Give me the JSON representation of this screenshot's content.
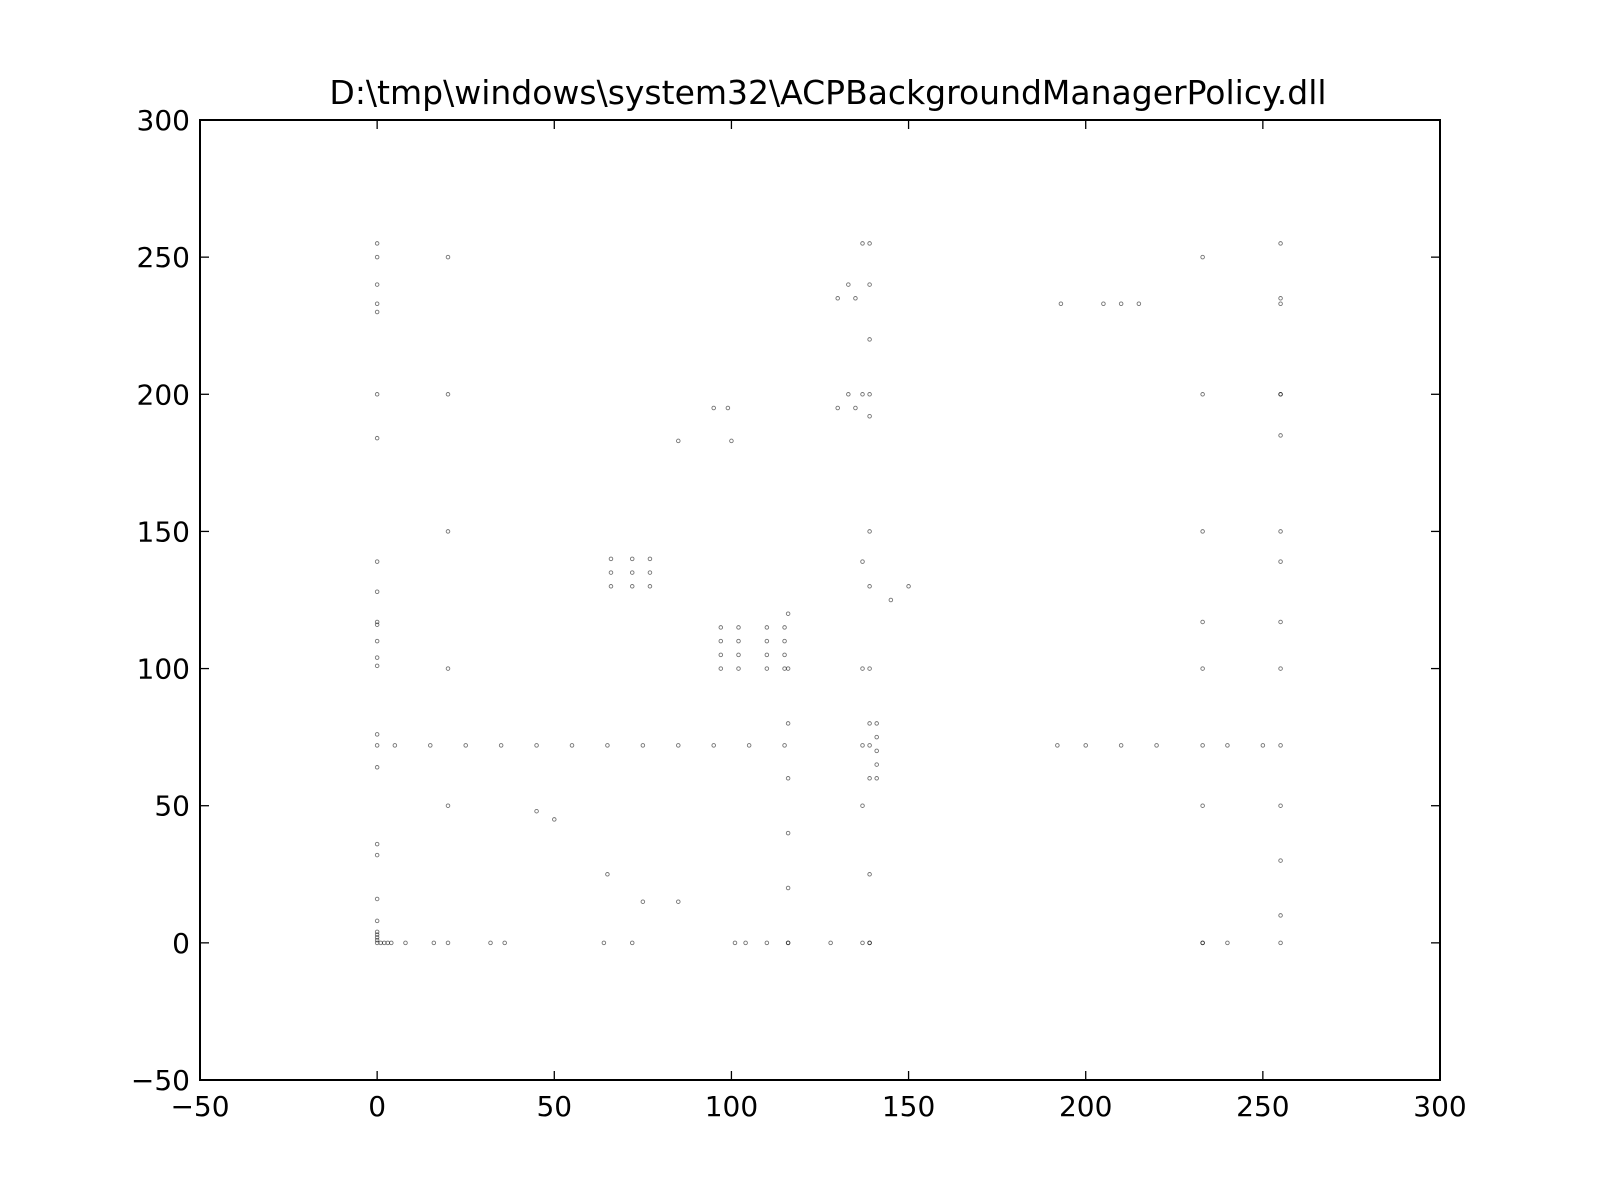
{
  "chart_data": {
    "type": "scatter",
    "title": "D:\\tmp\\windows\\system32\\ACPBackgroundManagerPolicy.dll",
    "xlabel": "",
    "ylabel": "",
    "xlim": [
      -50,
      300
    ],
    "ylim": [
      -50,
      300
    ],
    "x_ticks": [
      -50,
      0,
      50,
      100,
      150,
      200,
      250,
      300
    ],
    "y_ticks": [
      -50,
      0,
      50,
      100,
      150,
      200,
      250,
      300
    ],
    "x_tick_labels": [
      "−50",
      "0",
      "50",
      "100",
      "150",
      "200",
      "250",
      "300"
    ],
    "y_tick_labels": [
      "−50",
      "0",
      "50",
      "100",
      "150",
      "200",
      "250",
      "300"
    ],
    "grid": false,
    "legend": "none",
    "marker_color": "#000000",
    "description": "Byte-pair scatter: each point is (byte[i], byte[i+1]) of the file; values span 0-255 on both axes",
    "series": [
      {
        "values": [
          [
            0,
            0
          ],
          [
            0,
            255
          ],
          [
            0,
            72
          ],
          [
            0,
            117
          ],
          [
            0,
            128
          ],
          [
            0,
            139
          ],
          [
            0,
            200
          ],
          [
            0,
            230
          ],
          [
            0,
            250
          ],
          [
            255,
            0
          ],
          [
            255,
            255
          ],
          [
            255,
            72
          ],
          [
            255,
            117
          ],
          [
            255,
            139
          ],
          [
            255,
            200
          ],
          [
            255,
            233
          ],
          [
            1,
            0
          ],
          [
            2,
            0
          ],
          [
            3,
            0
          ],
          [
            4,
            0
          ],
          [
            8,
            0
          ],
          [
            16,
            0
          ],
          [
            32,
            0
          ],
          [
            36,
            0
          ],
          [
            64,
            0
          ],
          [
            72,
            0
          ],
          [
            101,
            0
          ],
          [
            104,
            0
          ],
          [
            110,
            0
          ],
          [
            116,
            0
          ],
          [
            128,
            0
          ],
          [
            139,
            0
          ],
          [
            233,
            0
          ],
          [
            240,
            0
          ],
          [
            0,
            1
          ],
          [
            0,
            2
          ],
          [
            0,
            3
          ],
          [
            0,
            4
          ],
          [
            0,
            8
          ],
          [
            0,
            16
          ],
          [
            0,
            32
          ],
          [
            0,
            36
          ],
          [
            0,
            64
          ],
          [
            0,
            76
          ],
          [
            0,
            101
          ],
          [
            0,
            104
          ],
          [
            0,
            110
          ],
          [
            0,
            116
          ],
          [
            0,
            184
          ],
          [
            0,
            233
          ],
          [
            0,
            240
          ],
          [
            20,
            0
          ],
          [
            20,
            50
          ],
          [
            20,
            100
          ],
          [
            20,
            150
          ],
          [
            20,
            200
          ],
          [
            20,
            250
          ],
          [
            116,
            0
          ],
          [
            116,
            20
          ],
          [
            116,
            40
          ],
          [
            116,
            60
          ],
          [
            116,
            80
          ],
          [
            116,
            100
          ],
          [
            116,
            120
          ],
          [
            137,
            0
          ],
          [
            137,
            50
          ],
          [
            137,
            72
          ],
          [
            137,
            100
          ],
          [
            137,
            139
          ],
          [
            137,
            200
          ],
          [
            137,
            255
          ],
          [
            139,
            0
          ],
          [
            139,
            25
          ],
          [
            139,
            60
          ],
          [
            139,
            72
          ],
          [
            139,
            80
          ],
          [
            139,
            100
          ],
          [
            139,
            130
          ],
          [
            139,
            150
          ],
          [
            139,
            192
          ],
          [
            139,
            200
          ],
          [
            139,
            220
          ],
          [
            139,
            240
          ],
          [
            139,
            255
          ],
          [
            141,
            60
          ],
          [
            141,
            65
          ],
          [
            141,
            70
          ],
          [
            141,
            75
          ],
          [
            141,
            80
          ],
          [
            233,
            0
          ],
          [
            233,
            50
          ],
          [
            233,
            72
          ],
          [
            233,
            100
          ],
          [
            233,
            117
          ],
          [
            233,
            150
          ],
          [
            233,
            200
          ],
          [
            233,
            250
          ],
          [
            5,
            72
          ],
          [
            15,
            72
          ],
          [
            25,
            72
          ],
          [
            35,
            72
          ],
          [
            45,
            72
          ],
          [
            55,
            72
          ],
          [
            65,
            72
          ],
          [
            75,
            72
          ],
          [
            85,
            72
          ],
          [
            95,
            72
          ],
          [
            105,
            72
          ],
          [
            115,
            72
          ],
          [
            192,
            72
          ],
          [
            200,
            72
          ],
          [
            210,
            72
          ],
          [
            220,
            72
          ],
          [
            240,
            72
          ],
          [
            250,
            72
          ],
          [
            97,
            100
          ],
          [
            97,
            105
          ],
          [
            97,
            110
          ],
          [
            97,
            115
          ],
          [
            102,
            100
          ],
          [
            102,
            105
          ],
          [
            102,
            110
          ],
          [
            102,
            115
          ],
          [
            110,
            100
          ],
          [
            110,
            105
          ],
          [
            110,
            110
          ],
          [
            110,
            115
          ],
          [
            115,
            100
          ],
          [
            115,
            105
          ],
          [
            115,
            110
          ],
          [
            115,
            115
          ],
          [
            66,
            130
          ],
          [
            66,
            135
          ],
          [
            66,
            140
          ],
          [
            72,
            130
          ],
          [
            72,
            135
          ],
          [
            72,
            140
          ],
          [
            77,
            130
          ],
          [
            77,
            135
          ],
          [
            77,
            140
          ],
          [
            95,
            195
          ],
          [
            99,
            195
          ],
          [
            85,
            183
          ],
          [
            100,
            183
          ],
          [
            130,
            195
          ],
          [
            133,
            200
          ],
          [
            135,
            195
          ],
          [
            130,
            235
          ],
          [
            133,
            240
          ],
          [
            135,
            235
          ],
          [
            193,
            233
          ],
          [
            205,
            233
          ],
          [
            210,
            233
          ],
          [
            215,
            233
          ],
          [
            45,
            48
          ],
          [
            50,
            45
          ],
          [
            65,
            25
          ],
          [
            75,
            15
          ],
          [
            85,
            15
          ],
          [
            255,
            10
          ],
          [
            255,
            30
          ],
          [
            255,
            50
          ],
          [
            255,
            100
          ],
          [
            255,
            150
          ],
          [
            255,
            185
          ],
          [
            255,
            200
          ],
          [
            255,
            235
          ],
          [
            150,
            130
          ],
          [
            145,
            125
          ]
        ]
      }
    ]
  }
}
